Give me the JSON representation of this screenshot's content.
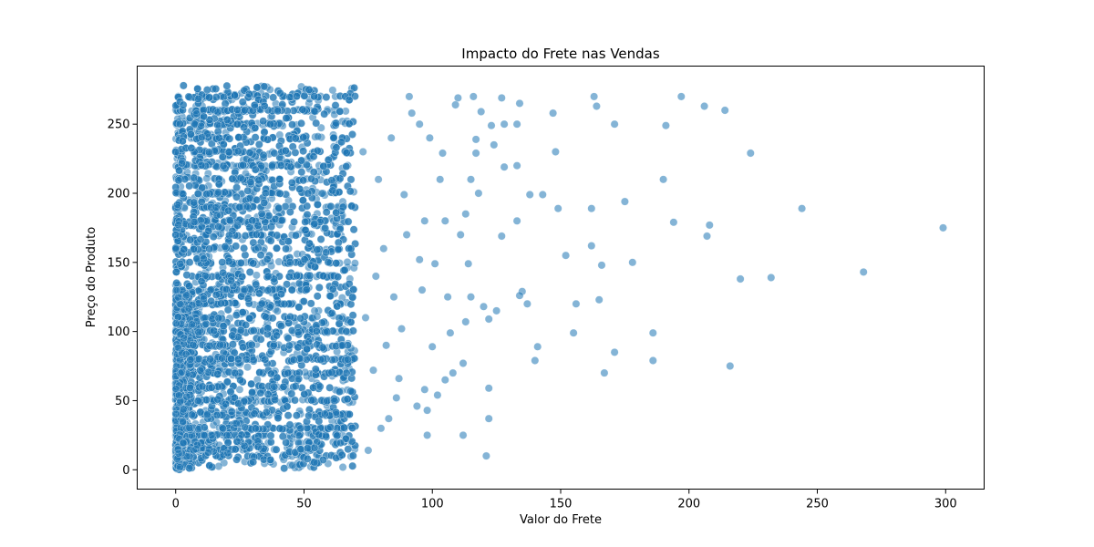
{
  "chart_data": {
    "type": "scatter",
    "title": "Impacto do Frete nas Vendas",
    "xlabel": "Valor do Frete",
    "ylabel": "Preço do Produto",
    "xlim": [
      -15,
      315
    ],
    "ylim": [
      -14,
      292
    ],
    "xticks": [
      0,
      50,
      100,
      150,
      200,
      250,
      300
    ],
    "yticks": [
      0,
      50,
      100,
      150,
      200,
      250
    ],
    "grid": false,
    "legend": "none",
    "marker_color": "#1f77b4",
    "marker_edge": "#ffffff",
    "marker_alpha": 0.55,
    "dense_cluster": {
      "x_range": [
        0,
        70
      ],
      "y_range": [
        1,
        278
      ],
      "approx_points": 6000
    },
    "outliers": [
      [
        299,
        175
      ],
      [
        268,
        143
      ],
      [
        244,
        189
      ],
      [
        232,
        139
      ],
      [
        224,
        229
      ],
      [
        220,
        138
      ],
      [
        216,
        75
      ],
      [
        214,
        260
      ],
      [
        208,
        177
      ],
      [
        207,
        169
      ],
      [
        206,
        263
      ],
      [
        197,
        270
      ],
      [
        194,
        179
      ],
      [
        191,
        249
      ],
      [
        190,
        210
      ],
      [
        186,
        99
      ],
      [
        186,
        79
      ],
      [
        178,
        150
      ],
      [
        175,
        194
      ],
      [
        171,
        250
      ],
      [
        171,
        85
      ],
      [
        167,
        70
      ],
      [
        166,
        148
      ],
      [
        165,
        123
      ],
      [
        164,
        263
      ],
      [
        163,
        270
      ],
      [
        162,
        162
      ],
      [
        162,
        189
      ],
      [
        156,
        120
      ],
      [
        155,
        99
      ],
      [
        152,
        155
      ],
      [
        149,
        189
      ],
      [
        148,
        230
      ],
      [
        147,
        258
      ],
      [
        143,
        199
      ],
      [
        141,
        89
      ],
      [
        140,
        79
      ],
      [
        138,
        199
      ],
      [
        137,
        120
      ],
      [
        135,
        129
      ],
      [
        134,
        126
      ],
      [
        134,
        265
      ],
      [
        133,
        180
      ],
      [
        133,
        220
      ],
      [
        133,
        250
      ],
      [
        128,
        250
      ],
      [
        128,
        219
      ],
      [
        127,
        169
      ],
      [
        127,
        269
      ],
      [
        125,
        115
      ],
      [
        124,
        235
      ],
      [
        123,
        249
      ],
      [
        122,
        109
      ],
      [
        122,
        59
      ],
      [
        122,
        37
      ],
      [
        121,
        10
      ],
      [
        120,
        118
      ],
      [
        119,
        259
      ],
      [
        118,
        200
      ],
      [
        117,
        239
      ],
      [
        117,
        229
      ],
      [
        116,
        270
      ],
      [
        115,
        210
      ],
      [
        115,
        125
      ],
      [
        114,
        149
      ],
      [
        113,
        107
      ],
      [
        113,
        185
      ],
      [
        112,
        25
      ],
      [
        112,
        77
      ],
      [
        111,
        170
      ],
      [
        110,
        269
      ],
      [
        109,
        264
      ],
      [
        108,
        70
      ],
      [
        107,
        99
      ],
      [
        106,
        125
      ],
      [
        105,
        65
      ],
      [
        105,
        180
      ],
      [
        104,
        229
      ],
      [
        103,
        210
      ],
      [
        102,
        54
      ],
      [
        101,
        149
      ],
      [
        100,
        89
      ],
      [
        99,
        240
      ],
      [
        98,
        25
      ],
      [
        98,
        43
      ],
      [
        97,
        58
      ],
      [
        97,
        180
      ],
      [
        96,
        130
      ],
      [
        95,
        152
      ],
      [
        95,
        250
      ],
      [
        94,
        46
      ],
      [
        92,
        258
      ],
      [
        91,
        270
      ],
      [
        90,
        170
      ],
      [
        89,
        199
      ],
      [
        88,
        102
      ],
      [
        87,
        66
      ],
      [
        86,
        52
      ],
      [
        85,
        125
      ],
      [
        84,
        240
      ],
      [
        83,
        37
      ],
      [
        82,
        90
      ],
      [
        81,
        160
      ],
      [
        80,
        30
      ],
      [
        79,
        210
      ],
      [
        78,
        140
      ],
      [
        77,
        72
      ],
      [
        75,
        14
      ],
      [
        74,
        110
      ],
      [
        73,
        230
      ]
    ]
  }
}
